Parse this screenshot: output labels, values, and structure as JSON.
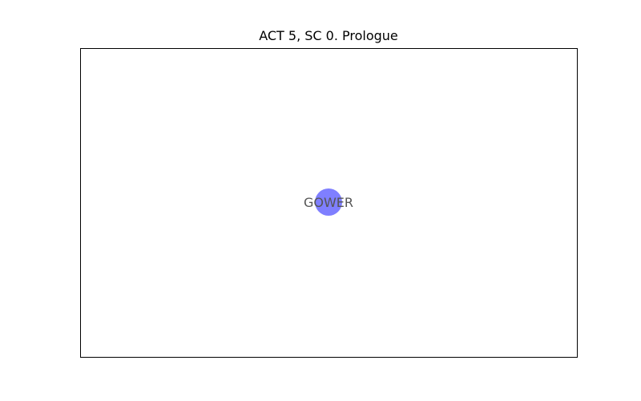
{
  "title": "ACT 5, SC 0. Prologue",
  "network": {
    "nodes": [
      {
        "label": "GOWER",
        "color": "#0000ff",
        "opacity": 0.5
      }
    ],
    "edges": []
  },
  "style": {
    "label_color": "#555555",
    "axes_visible": false
  }
}
